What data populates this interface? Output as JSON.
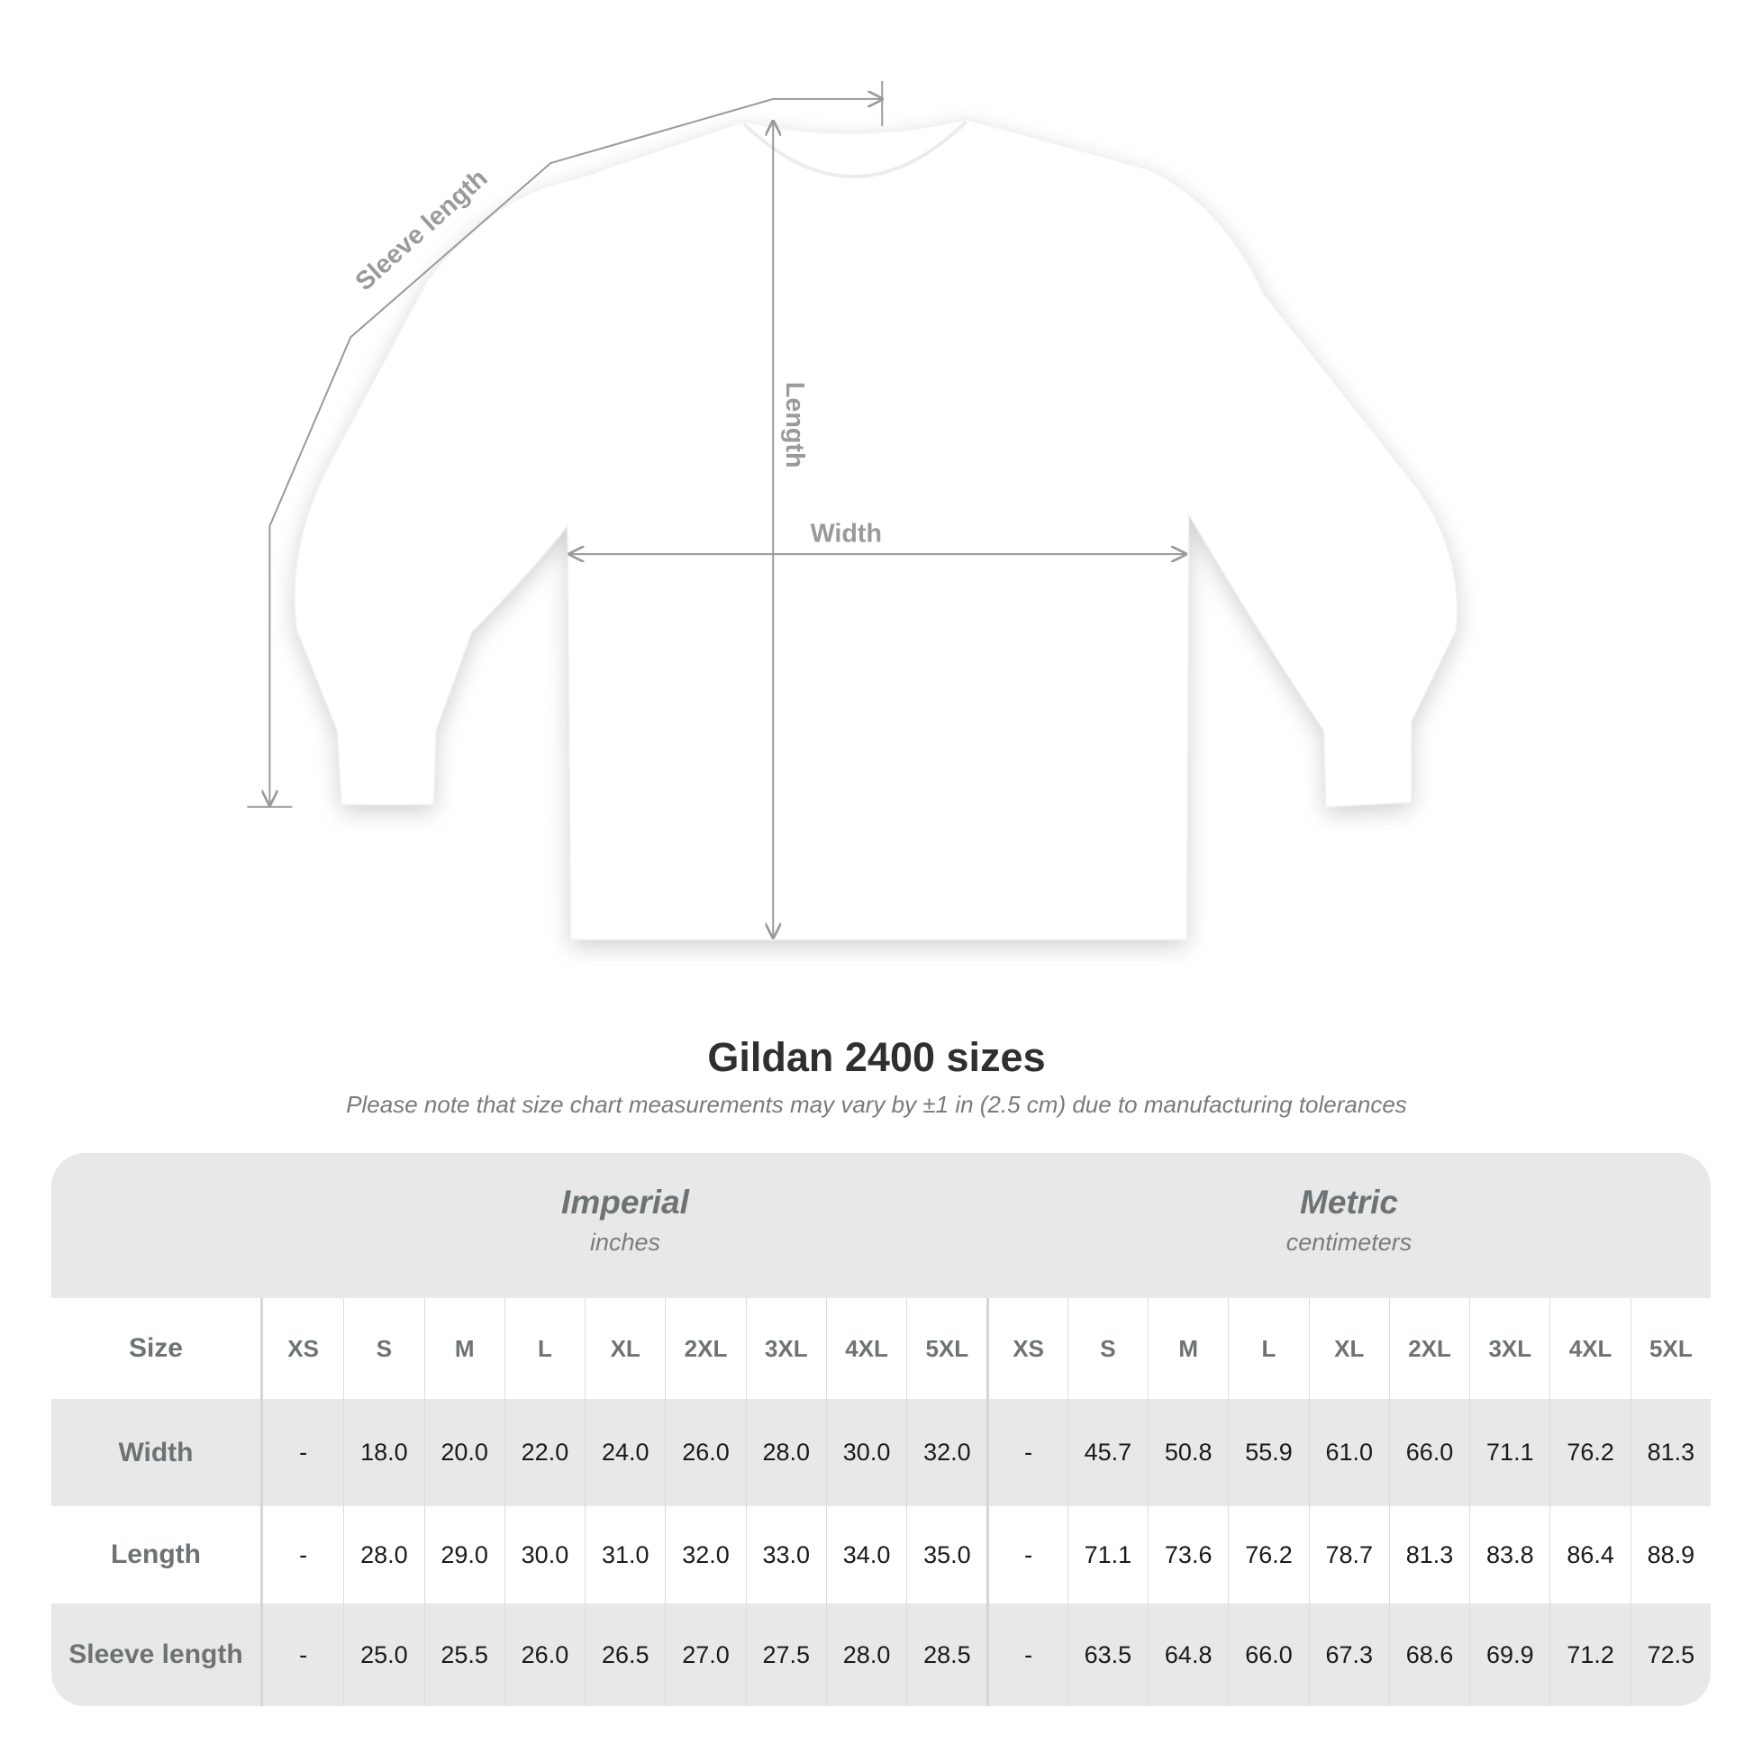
{
  "diagram": {
    "labels": {
      "sleeve": "Sleeve length",
      "length": "Length",
      "width": "Width"
    },
    "garment_color": "#ffffff",
    "line_color": "#9a9a9a"
  },
  "title": "Gildan 2400 sizes",
  "subtitle": "Please note that size chart measurements may vary by ±1 in (2.5 cm) due to manufacturing tolerances",
  "table": {
    "imperial": {
      "name": "Imperial",
      "unit": "inches"
    },
    "metric": {
      "name": "Metric",
      "unit": "centimeters"
    },
    "size_label": "Size",
    "sizes": [
      "XS",
      "S",
      "M",
      "L",
      "XL",
      "2XL",
      "3XL",
      "4XL",
      "5XL"
    ],
    "rows": [
      {
        "label": "Width",
        "imperial": [
          "-",
          "18.0",
          "20.0",
          "22.0",
          "24.0",
          "26.0",
          "28.0",
          "30.0",
          "32.0"
        ],
        "metric": [
          "-",
          "45.7",
          "50.8",
          "55.9",
          "61.0",
          "66.0",
          "71.1",
          "76.2",
          "81.3"
        ]
      },
      {
        "label": "Length",
        "imperial": [
          "-",
          "28.0",
          "29.0",
          "30.0",
          "31.0",
          "32.0",
          "33.0",
          "34.0",
          "35.0"
        ],
        "metric": [
          "-",
          "71.1",
          "73.6",
          "76.2",
          "78.7",
          "81.3",
          "83.8",
          "86.4",
          "88.9"
        ]
      },
      {
        "label": "Sleeve length",
        "imperial": [
          "-",
          "25.0",
          "25.5",
          "26.0",
          "26.5",
          "27.0",
          "27.5",
          "28.0",
          "28.5"
        ],
        "metric": [
          "-",
          "63.5",
          "64.8",
          "66.0",
          "67.3",
          "68.6",
          "69.9",
          "71.2",
          "72.5"
        ]
      }
    ],
    "shade_color": "#e8e8e8"
  }
}
